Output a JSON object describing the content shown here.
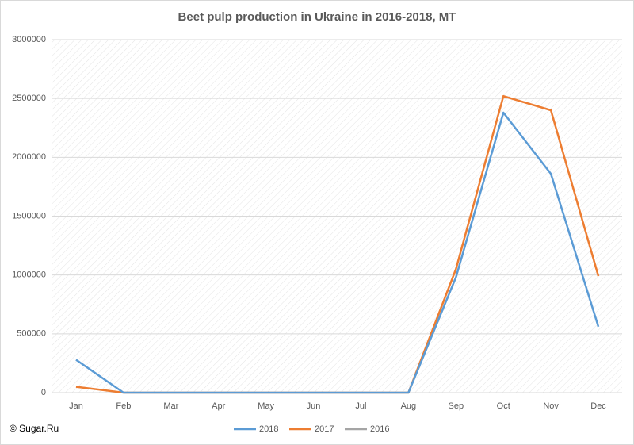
{
  "chart_data": {
    "type": "line",
    "title": "Beet pulp production in Ukraine in 2016-2018, MT",
    "categories": [
      "Jan",
      "Feb",
      "Mar",
      "Apr",
      "May",
      "Jun",
      "Jul",
      "Aug",
      "Sep",
      "Oct",
      "Nov",
      "Dec"
    ],
    "series": [
      {
        "name": "2018",
        "color": "#5b9bd5",
        "values": [
          280000,
          0,
          0,
          0,
          0,
          0,
          0,
          0,
          980000,
          2380000,
          1860000,
          560000
        ]
      },
      {
        "name": "2017",
        "color": "#ed7d31",
        "values": [
          50000,
          0,
          0,
          0,
          0,
          0,
          0,
          0,
          1050000,
          2520000,
          2400000,
          990000
        ]
      },
      {
        "name": "2016",
        "color": "#a5a5a5",
        "values": [
          null,
          null,
          null,
          null,
          null,
          null,
          null,
          null,
          null,
          null,
          null,
          null
        ]
      }
    ],
    "ylim": [
      0,
      3000000
    ],
    "yticks": [
      0,
      500000,
      1000000,
      1500000,
      2000000,
      2500000,
      3000000
    ],
    "grid": true,
    "legend": "bottom",
    "source": "© Sugar.Ru"
  }
}
